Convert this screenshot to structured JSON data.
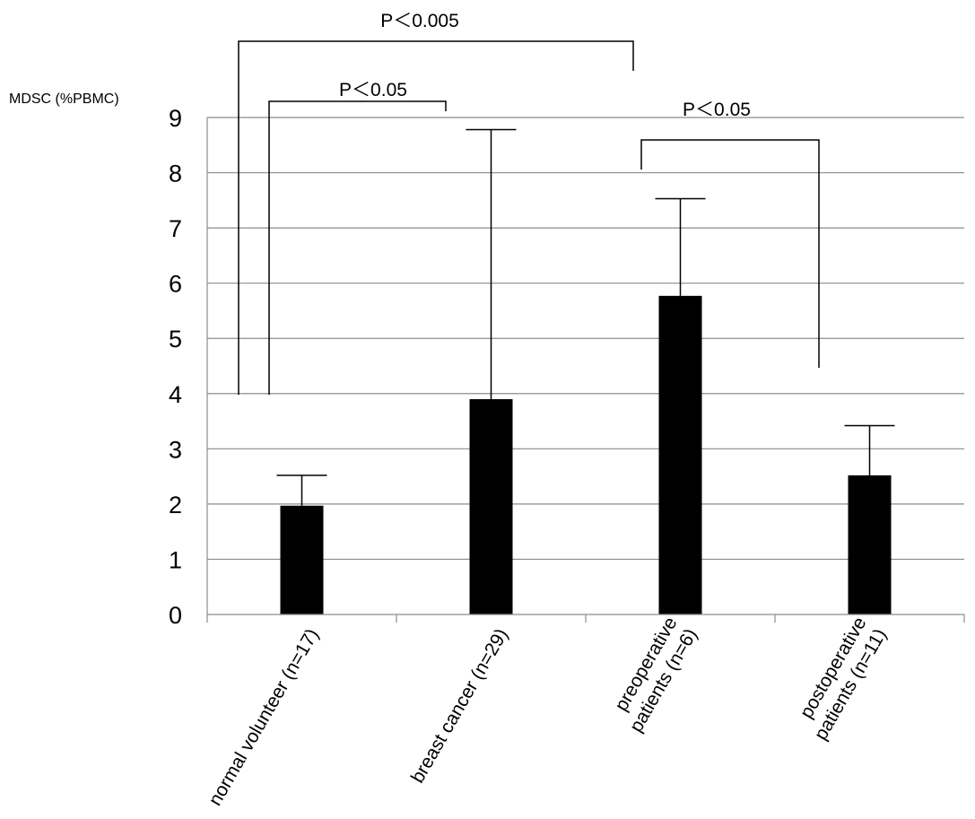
{
  "chart_data": {
    "type": "bar",
    "title": "",
    "ylabel": "MDSC (%PBMC)",
    "xlabel": "",
    "ylim": [
      0,
      9
    ],
    "yticks": [
      0,
      1,
      2,
      3,
      4,
      5,
      6,
      7,
      8,
      9
    ],
    "grid": true,
    "bar_color": "#000000",
    "categories": [
      [
        "normal volunteer (n=17)"
      ],
      [
        "breast cancer (n=29)"
      ],
      [
        "preoperative",
        "patients (n=6)"
      ],
      [
        "postoperative",
        "patients (n=11)"
      ]
    ],
    "values": [
      1.97,
      3.9,
      5.77,
      2.52
    ],
    "error_plus": [
      0.55,
      4.88,
      1.76,
      0.9
    ],
    "significance": [
      {
        "label": "P＜0.005",
        "from": 0,
        "to": 2
      },
      {
        "label": "P＜0.05",
        "from": 0,
        "to": 1
      },
      {
        "label": "P＜0.05",
        "from": 2,
        "to": 3
      }
    ]
  }
}
